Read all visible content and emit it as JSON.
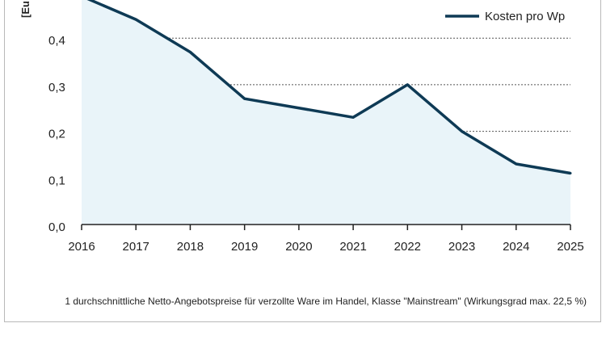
{
  "chart_data": {
    "type": "area",
    "ylabel": "[Eu",
    "x": [
      "2016",
      "2017",
      "2018",
      "2019",
      "2020",
      "2021",
      "2022",
      "2023",
      "2024",
      "2025"
    ],
    "series": [
      {
        "name": "Kosten pro Wp",
        "values": [
          0.49,
          0.44,
          0.37,
          0.27,
          0.25,
          0.23,
          0.3,
          0.2,
          0.13,
          0.11
        ]
      }
    ],
    "y_ticks": [
      "0,0",
      "0,1",
      "0,2",
      "0,3",
      "0,4"
    ],
    "y_tick_values": [
      0.0,
      0.1,
      0.2,
      0.3,
      0.4
    ],
    "ylim": [
      0,
      0.49
    ],
    "grid": true,
    "legend_position": "top-right",
    "colors": {
      "line": "#0e3a55",
      "fill": "#e9f4f9",
      "grid": "#555555",
      "axis": "#222222"
    }
  },
  "footnote": "1 durchschnittliche Netto-Angebotspreise für verzollte Ware im Handel, Klasse \"Mainstream\" (Wirkungsgrad max. 22,5 %)"
}
